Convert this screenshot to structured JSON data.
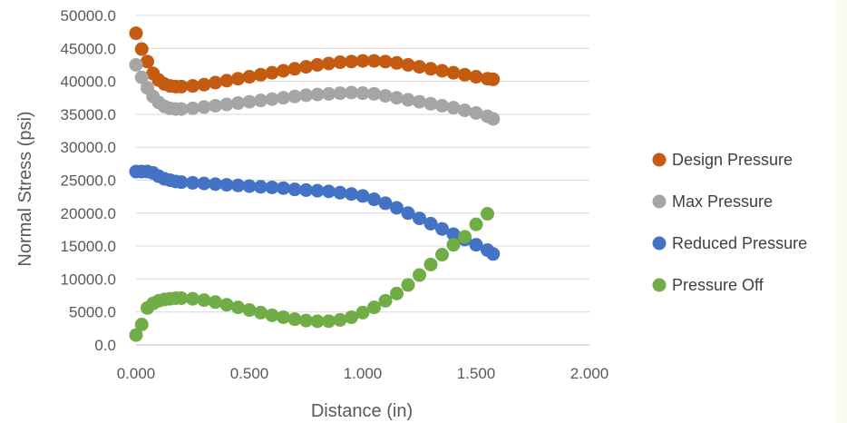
{
  "chart_data": {
    "type": "scatter",
    "xlabel": "Distance (in)",
    "ylabel": "Normal Stress (psi)",
    "xlim": [
      0,
      2
    ],
    "ylim": [
      0,
      50000
    ],
    "x_ticks": [
      "0.000",
      "0.500",
      "1.000",
      "1.500",
      "2.000"
    ],
    "y_ticks": [
      "0.0",
      "5000.0",
      "10000.0",
      "15000.0",
      "20000.0",
      "25000.0",
      "30000.0",
      "35000.0",
      "40000.0",
      "45000.0",
      "50000.0"
    ],
    "grid": "horizontal",
    "legend_position": "right",
    "series": [
      {
        "name": "Design Pressure",
        "color": "#c55a11",
        "points": [
          [
            0.0,
            47300
          ],
          [
            0.025,
            44900
          ],
          [
            0.05,
            43000
          ],
          [
            0.075,
            41200
          ],
          [
            0.1,
            40200
          ],
          [
            0.125,
            39600
          ],
          [
            0.15,
            39300
          ],
          [
            0.175,
            39200
          ],
          [
            0.2,
            39200
          ],
          [
            0.25,
            39300
          ],
          [
            0.3,
            39500
          ],
          [
            0.35,
            39800
          ],
          [
            0.4,
            40100
          ],
          [
            0.45,
            40400
          ],
          [
            0.5,
            40700
          ],
          [
            0.55,
            41000
          ],
          [
            0.6,
            41300
          ],
          [
            0.65,
            41600
          ],
          [
            0.7,
            41900
          ],
          [
            0.75,
            42200
          ],
          [
            0.8,
            42500
          ],
          [
            0.85,
            42700
          ],
          [
            0.9,
            42900
          ],
          [
            0.95,
            43000
          ],
          [
            1.0,
            43100
          ],
          [
            1.05,
            43100
          ],
          [
            1.1,
            43000
          ],
          [
            1.15,
            42800
          ],
          [
            1.2,
            42500
          ],
          [
            1.25,
            42200
          ],
          [
            1.3,
            41900
          ],
          [
            1.35,
            41600
          ],
          [
            1.4,
            41300
          ],
          [
            1.45,
            41000
          ],
          [
            1.5,
            40700
          ],
          [
            1.55,
            40400
          ],
          [
            1.575,
            40300
          ]
        ]
      },
      {
        "name": "Max Pressure",
        "color": "#a5a5a5",
        "points": [
          [
            0.0,
            42500
          ],
          [
            0.025,
            40600
          ],
          [
            0.05,
            39000
          ],
          [
            0.075,
            37700
          ],
          [
            0.1,
            36800
          ],
          [
            0.125,
            36200
          ],
          [
            0.15,
            35900
          ],
          [
            0.175,
            35800
          ],
          [
            0.2,
            35800
          ],
          [
            0.25,
            35900
          ],
          [
            0.3,
            36100
          ],
          [
            0.35,
            36300
          ],
          [
            0.4,
            36500
          ],
          [
            0.45,
            36700
          ],
          [
            0.5,
            36900
          ],
          [
            0.55,
            37100
          ],
          [
            0.6,
            37300
          ],
          [
            0.65,
            37500
          ],
          [
            0.7,
            37700
          ],
          [
            0.75,
            37900
          ],
          [
            0.8,
            38000
          ],
          [
            0.85,
            38100
          ],
          [
            0.9,
            38200
          ],
          [
            0.95,
            38300
          ],
          [
            1.0,
            38200
          ],
          [
            1.05,
            38100
          ],
          [
            1.1,
            37800
          ],
          [
            1.15,
            37500
          ],
          [
            1.2,
            37200
          ],
          [
            1.25,
            36900
          ],
          [
            1.3,
            36600
          ],
          [
            1.35,
            36300
          ],
          [
            1.4,
            36000
          ],
          [
            1.45,
            35600
          ],
          [
            1.5,
            35200
          ],
          [
            1.55,
            34700
          ],
          [
            1.575,
            34300
          ]
        ]
      },
      {
        "name": "Reduced Pressure",
        "color": "#4472c4",
        "points": [
          [
            0.0,
            26300
          ],
          [
            0.025,
            26300
          ],
          [
            0.05,
            26300
          ],
          [
            0.075,
            26100
          ],
          [
            0.1,
            25600
          ],
          [
            0.125,
            25200
          ],
          [
            0.15,
            25000
          ],
          [
            0.175,
            24800
          ],
          [
            0.2,
            24700
          ],
          [
            0.25,
            24600
          ],
          [
            0.3,
            24500
          ],
          [
            0.35,
            24400
          ],
          [
            0.4,
            24300
          ],
          [
            0.45,
            24200
          ],
          [
            0.5,
            24100
          ],
          [
            0.55,
            24000
          ],
          [
            0.6,
            23900
          ],
          [
            0.65,
            23800
          ],
          [
            0.7,
            23600
          ],
          [
            0.75,
            23500
          ],
          [
            0.8,
            23400
          ],
          [
            0.85,
            23300
          ],
          [
            0.9,
            23100
          ],
          [
            0.95,
            22900
          ],
          [
            1.0,
            22600
          ],
          [
            1.05,
            22100
          ],
          [
            1.1,
            21500
          ],
          [
            1.15,
            20800
          ],
          [
            1.2,
            20000
          ],
          [
            1.25,
            19200
          ],
          [
            1.3,
            18400
          ],
          [
            1.35,
            17600
          ],
          [
            1.4,
            16800
          ],
          [
            1.45,
            16000
          ],
          [
            1.5,
            15200
          ],
          [
            1.55,
            14400
          ],
          [
            1.575,
            13800
          ]
        ]
      },
      {
        "name": "Pressure Off",
        "color": "#70ad47",
        "points": [
          [
            0.0,
            1500
          ],
          [
            0.025,
            3100
          ],
          [
            0.05,
            5600
          ],
          [
            0.075,
            6300
          ],
          [
            0.1,
            6700
          ],
          [
            0.125,
            6900
          ],
          [
            0.15,
            7000
          ],
          [
            0.175,
            7100
          ],
          [
            0.2,
            7100
          ],
          [
            0.25,
            7000
          ],
          [
            0.3,
            6800
          ],
          [
            0.35,
            6500
          ],
          [
            0.4,
            6100
          ],
          [
            0.45,
            5700
          ],
          [
            0.5,
            5300
          ],
          [
            0.55,
            4900
          ],
          [
            0.6,
            4500
          ],
          [
            0.65,
            4200
          ],
          [
            0.7,
            3900
          ],
          [
            0.75,
            3700
          ],
          [
            0.8,
            3600
          ],
          [
            0.85,
            3600
          ],
          [
            0.9,
            3800
          ],
          [
            0.95,
            4200
          ],
          [
            1.0,
            4900
          ],
          [
            1.05,
            5700
          ],
          [
            1.1,
            6700
          ],
          [
            1.15,
            7800
          ],
          [
            1.2,
            9100
          ],
          [
            1.25,
            10600
          ],
          [
            1.3,
            12200
          ],
          [
            1.35,
            13700
          ],
          [
            1.4,
            15200
          ],
          [
            1.45,
            16400
          ],
          [
            1.5,
            18300
          ],
          [
            1.55,
            19900
          ]
        ]
      }
    ]
  }
}
